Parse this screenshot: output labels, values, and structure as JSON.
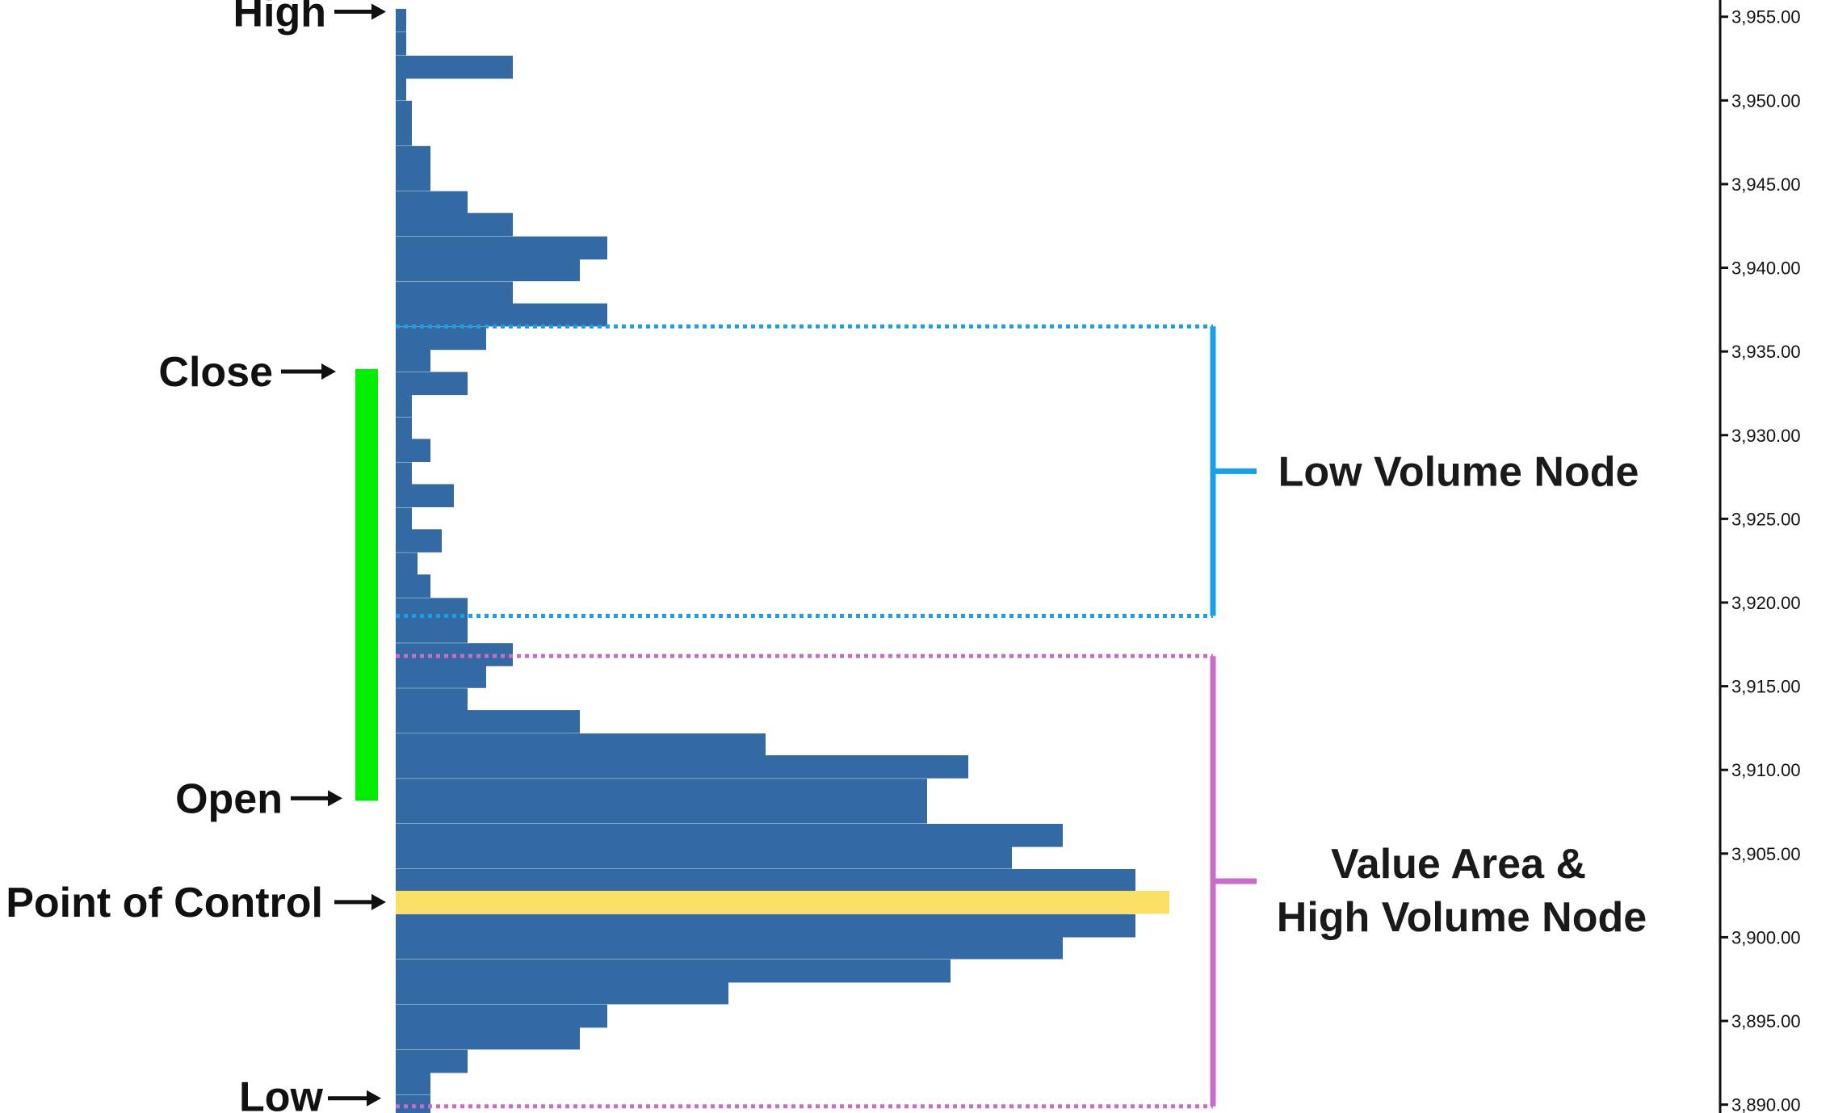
{
  "chart_data": {
    "type": "bar",
    "orientation": "horizontal",
    "title": "",
    "xlabel": "",
    "ylabel": "",
    "ylim": [
      3889.5,
      3956
    ],
    "row_height": 1.35,
    "bar_color": "#336aa4",
    "poc_color": "#fce065",
    "price_ticks": [
      3955,
      3950,
      3945,
      3940,
      3935,
      3930,
      3925,
      3920,
      3915,
      3910,
      3905,
      3900,
      3895,
      3890
    ],
    "price_tick_labels": [
      "3,955.00",
      "3,950.00",
      "3,945.00",
      "3,940.00",
      "3,935.00",
      "3,930.00",
      "3,925.00",
      "3,920.00",
      "3,915.00",
      "3,910.00",
      "3,905.00",
      "3,900.00",
      "3,895.00",
      "3,890.00"
    ],
    "rows": [
      {
        "price": 3954.8,
        "volume": 13
      },
      {
        "price": 3953.4,
        "volume": 13
      },
      {
        "price": 3952.0,
        "volume": 145
      },
      {
        "price": 3950.7,
        "volume": 13
      },
      {
        "price": 3949.3,
        "volume": 20
      },
      {
        "price": 3948.0,
        "volume": 20
      },
      {
        "price": 3946.6,
        "volume": 43
      },
      {
        "price": 3945.3,
        "volume": 43
      },
      {
        "price": 3943.9,
        "volume": 89
      },
      {
        "price": 3942.6,
        "volume": 145
      },
      {
        "price": 3941.2,
        "volume": 262
      },
      {
        "price": 3939.9,
        "volume": 228
      },
      {
        "price": 3938.5,
        "volume": 145
      },
      {
        "price": 3937.2,
        "volume": 262
      },
      {
        "price": 3935.8,
        "volume": 112
      },
      {
        "price": 3934.5,
        "volume": 43
      },
      {
        "price": 3933.1,
        "volume": 89
      },
      {
        "price": 3931.8,
        "volume": 20
      },
      {
        "price": 3930.4,
        "volume": 20
      },
      {
        "price": 3929.1,
        "volume": 43
      },
      {
        "price": 3927.7,
        "volume": 20
      },
      {
        "price": 3926.4,
        "volume": 72
      },
      {
        "price": 3925.0,
        "volume": 20
      },
      {
        "price": 3923.7,
        "volume": 57
      },
      {
        "price": 3922.3,
        "volume": 27
      },
      {
        "price": 3921.0,
        "volume": 43
      },
      {
        "price": 3919.6,
        "volume": 89
      },
      {
        "price": 3918.3,
        "volume": 89
      },
      {
        "price": 3916.9,
        "volume": 145
      },
      {
        "price": 3915.6,
        "volume": 112
      },
      {
        "price": 3914.2,
        "volume": 89
      },
      {
        "price": 3912.9,
        "volume": 228
      },
      {
        "price": 3911.5,
        "volume": 458
      },
      {
        "price": 3910.2,
        "volume": 709
      },
      {
        "price": 3908.8,
        "volume": 658
      },
      {
        "price": 3907.5,
        "volume": 658
      },
      {
        "price": 3906.1,
        "volume": 826
      },
      {
        "price": 3904.8,
        "volume": 763
      },
      {
        "price": 3903.4,
        "volume": 916
      },
      {
        "price": 3902.1,
        "volume": 958,
        "poc": true
      },
      {
        "price": 3900.7,
        "volume": 916
      },
      {
        "price": 3899.4,
        "volume": 826
      },
      {
        "price": 3898.0,
        "volume": 687
      },
      {
        "price": 3896.7,
        "volume": 412
      },
      {
        "price": 3895.3,
        "volume": 262
      },
      {
        "price": 3894.0,
        "volume": 228
      },
      {
        "price": 3892.6,
        "volume": 89
      },
      {
        "price": 3891.3,
        "volume": 43
      },
      {
        "price": 3889.9,
        "volume": 43
      }
    ],
    "levels": {
      "high": 3955.3,
      "close": 3933.8,
      "open": 3908.3,
      "poc": 3902.1,
      "low": 3889.9
    },
    "candle_color": "#00ef00",
    "zones": [
      {
        "name": "lvn",
        "top": 3936.5,
        "bottom": 3919.2,
        "color": "#1a9ee6"
      },
      {
        "name": "value_area",
        "top": 3916.8,
        "bottom": 3889.9,
        "color": "#c86cc8"
      }
    ]
  },
  "annotations": {
    "high": "High",
    "close": "Close",
    "open": "Open",
    "poc": "Point of Control",
    "low": "Low",
    "lvn": "Low Volume Node",
    "value_area_line1": "Value Area &",
    "value_area_line2": "High Volume Node"
  }
}
